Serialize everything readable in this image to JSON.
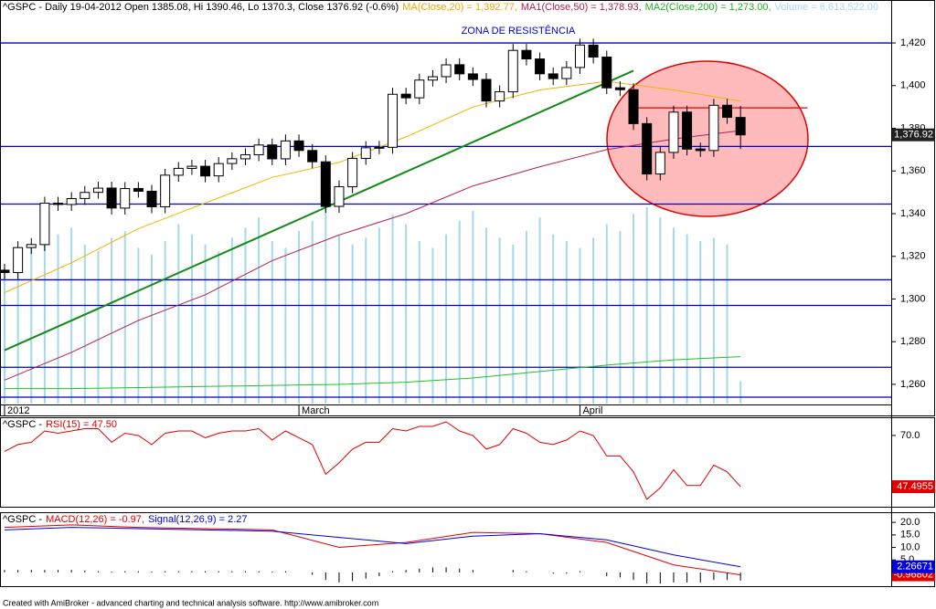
{
  "chart_data": [
    {
      "type": "candlestick",
      "header": [
        {
          "text": "^GSPC - Daily 19-04-2012 Open 1385.08, Hi 1390.46, Lo 1370.3, Close 1376.92 (-0.6%)",
          "color": "#000000"
        },
        {
          "text": "MA(Close,20) = 1,392.77,",
          "color": "#f0a800"
        },
        {
          "text": "MA1(Close,50) = 1,378.93,",
          "color": "#b0205a"
        },
        {
          "text": "MA2(Close,200) = 1,273.00,",
          "color": "#22b022"
        },
        {
          "text": "Volume = 6,613,522.00",
          "color": "#a6d8ec"
        }
      ],
      "annotation": "ZONA DE RESISTÊNCIA",
      "categories": [
        "2012",
        null,
        null,
        null,
        null,
        null,
        null,
        null,
        null,
        null,
        null,
        null,
        null,
        null,
        null,
        null,
        null,
        null,
        null,
        null,
        null,
        null,
        "March",
        null,
        null,
        null,
        null,
        null,
        null,
        null,
        null,
        null,
        null,
        null,
        null,
        null,
        null,
        null,
        null,
        null,
        null,
        null,
        null,
        "April",
        null,
        null,
        null,
        null,
        null,
        null,
        null,
        null,
        null,
        null,
        null,
        null
      ],
      "open": [
        1313.5,
        1312.4,
        1324.1,
        1325.5,
        1344.9,
        1344.3,
        1347.1,
        1350.0,
        1352.0,
        1342.6,
        1351.8,
        1350.5,
        1343.2,
        1358.0,
        1361.2,
        1362.2,
        1357.7,
        1363.5,
        1365.7,
        1367.6,
        1372.2,
        1365.7,
        1374.1,
        1369.6,
        1364.3,
        1343.4,
        1352.6,
        1365.9,
        1370.9,
        1371.1,
        1396.0,
        1394.3,
        1402.6,
        1404.2,
        1409.8,
        1405.5,
        1402.9,
        1392.8,
        1397.1,
        1416.5,
        1412.5,
        1405.5,
        1403.3,
        1408.5,
        1419.0,
        1413.4,
        1399.0,
        1398.1,
        1382.2,
        1358.6,
        1368.7,
        1387.6,
        1370.3,
        1369.6,
        1390.8,
        1385.08
      ],
      "high": [
        1316.5,
        1327.1,
        1328.5,
        1347.9,
        1347.9,
        1350.1,
        1353.0,
        1355.0,
        1355.0,
        1354.8,
        1354.8,
        1353.5,
        1361.0,
        1364.2,
        1365.2,
        1365.2,
        1366.5,
        1368.7,
        1370.6,
        1375.2,
        1375.2,
        1377.1,
        1377.1,
        1372.6,
        1367.3,
        1355.6,
        1368.9,
        1373.9,
        1374.1,
        1399.0,
        1399.0,
        1405.6,
        1407.2,
        1412.8,
        1412.8,
        1408.5,
        1405.9,
        1400.1,
        1419.5,
        1419.5,
        1415.5,
        1408.5,
        1411.5,
        1422.0,
        1422.0,
        1416.4,
        1402.0,
        1401.1,
        1385.2,
        1371.7,
        1390.6,
        1390.6,
        1373.3,
        1393.8,
        1393.8,
        1390.46
      ],
      "low": [
        1309.4,
        1309.4,
        1321.1,
        1322.5,
        1341.3,
        1341.3,
        1344.1,
        1347.0,
        1339.6,
        1339.6,
        1347.5,
        1340.2,
        1340.2,
        1355.0,
        1358.2,
        1354.7,
        1354.7,
        1360.5,
        1362.7,
        1364.6,
        1362.7,
        1362.7,
        1366.6,
        1361.3,
        1340.4,
        1340.4,
        1349.6,
        1362.9,
        1367.9,
        1368.1,
        1391.3,
        1391.3,
        1399.6,
        1401.2,
        1402.5,
        1399.9,
        1389.8,
        1389.8,
        1394.1,
        1409.5,
        1402.5,
        1400.3,
        1400.3,
        1405.5,
        1410.4,
        1396.0,
        1395.1,
        1379.2,
        1355.6,
        1355.6,
        1365.7,
        1367.3,
        1366.6,
        1366.6,
        1382.1,
        1370.3
      ],
      "close": [
        1312.41,
        1324.09,
        1325.54,
        1344.9,
        1344.33,
        1347.05,
        1349.96,
        1351.95,
        1342.64,
        1351.77,
        1350.5,
        1343.23,
        1358.04,
        1361.23,
        1362.21,
        1357.66,
        1363.46,
        1365.74,
        1367.59,
        1372.18,
        1365.68,
        1374.09,
        1369.63,
        1364.33,
        1343.36,
        1352.63,
        1365.91,
        1370.87,
        1371.09,
        1395.95,
        1394.28,
        1402.6,
        1404.17,
        1409.75,
        1405.52,
        1402.89,
        1392.78,
        1397.11,
        1416.51,
        1412.52,
        1405.54,
        1403.28,
        1408.47,
        1419.04,
        1413.38,
        1398.96,
        1398.08,
        1382.2,
        1358.59,
        1368.71,
        1387.57,
        1370.26,
        1369.57,
        1390.78,
        1385.14,
        1376.92
      ],
      "close_label": "1,376.92",
      "volume": {
        "color": "#a6d8ec",
        "values": [
          40000000,
          44000000,
          46000000,
          48000000,
          50000000,
          52000000,
          47000000,
          45000000,
          49000000,
          51000000,
          46000000,
          44000000,
          48000000,
          53000000,
          50000000,
          47000000,
          45000000,
          49000000,
          52000000,
          55000000,
          48000000,
          46000000,
          51000000,
          54000000,
          58000000,
          50000000,
          47000000,
          49000000,
          52000000,
          56000000,
          53000000,
          48000000,
          46000000,
          50000000,
          54000000,
          57000000,
          52000000,
          49000000,
          47000000,
          51000000,
          55000000,
          50000000,
          48000000,
          46000000,
          49000000,
          53000000,
          51000000,
          56000000,
          58000000,
          55000000,
          52000000,
          50000000,
          48000000,
          49000000,
          47000000,
          6613522
        ]
      },
      "series": [
        {
          "color": "#f0b400",
          "x": [
            0,
            5,
            10,
            15,
            20,
            25,
            30,
            35,
            40,
            45,
            50,
            55
          ],
          "values": [
            1303,
            1317,
            1333,
            1345,
            1357,
            1364,
            1376,
            1390,
            1398,
            1402,
            1398,
            1392.77
          ]
        },
        {
          "color": "#b0205a",
          "x": [
            0,
            5,
            10,
            15,
            20,
            25,
            30,
            35,
            40,
            45,
            50,
            55
          ],
          "values": [
            1262,
            1275,
            1290,
            1302,
            1318,
            1330,
            1340,
            1353,
            1362,
            1370,
            1375,
            1378.93
          ]
        },
        {
          "color": "#22c022",
          "x": [
            0,
            5,
            10,
            15,
            20,
            25,
            30,
            35,
            40,
            45,
            50,
            55
          ],
          "values": [
            1258,
            1258,
            1258.5,
            1259,
            1259.5,
            1260,
            1261,
            1263,
            1266,
            1269,
            1271.5,
            1273
          ]
        },
        {
          "color": "#138a13",
          "x": [
            0,
            47
          ],
          "values": [
            1276,
            1407
          ],
          "width": 2
        },
        {
          "color": "#e00000",
          "x": [
            47,
            60
          ],
          "values": [
            1389.6,
            1389.6
          ],
          "width": 1.2
        }
      ],
      "hlines": {
        "color": "#0000c8",
        "values": [
          1420,
          1371.5,
          1344.5,
          1309,
          1297,
          1268,
          1254
        ]
      },
      "xlim": [
        -0.34,
        66.26
      ],
      "ylim": [
        1251,
        1432
      ],
      "yticks": [
        {
          "value": 1260,
          "label": "1,260"
        },
        {
          "value": 1280,
          "label": "1,280"
        },
        {
          "value": 1300,
          "label": "1,300"
        },
        {
          "value": 1320,
          "label": "1,320"
        },
        {
          "value": 1340,
          "label": "1,340"
        },
        {
          "value": 1360,
          "label": "1,360"
        },
        {
          "value": 1380,
          "label": "1,380"
        },
        {
          "value": 1400,
          "label": "1,400"
        },
        {
          "value": 1420,
          "label": "1,420"
        }
      ]
    },
    {
      "type": "line",
      "header": [
        {
          "text": "^GSPC -",
          "color": "#000000"
        },
        {
          "text": "RSI(15) = 47.50",
          "color": "#e00000"
        }
      ],
      "series": [
        {
          "color": "#e00000",
          "values": [
            63,
            66,
            67,
            72,
            71,
            72,
            73,
            73,
            67,
            71,
            70,
            66,
            71,
            72,
            72,
            69,
            71,
            72,
            72,
            73,
            68,
            72,
            69,
            66,
            53,
            58,
            64,
            67,
            67,
            73,
            72,
            74,
            74,
            76,
            72,
            70,
            64,
            66,
            73,
            71,
            67,
            66,
            68,
            72,
            70,
            61,
            61,
            54,
            42,
            47,
            55,
            48,
            48,
            57,
            54,
            47.4955
          ],
          "label_bg": "#e00000"
        }
      ],
      "xlim": [
        -0.34,
        66.26
      ],
      "ylim": [
        38.7,
        77.6
      ],
      "yticks": [
        {
          "value": 70,
          "label": "70.0"
        }
      ]
    },
    {
      "type": "line",
      "header": [
        {
          "text": "^GSPC -",
          "color": "#000000"
        },
        {
          "text": "MACD(12,26) = -0.97,",
          "color": "#e00000"
        },
        {
          "text": "Signal(12,26,9) = 2.27",
          "color": "#0000e0"
        }
      ],
      "series": [
        {
          "color": "#e00000",
          "x": [
            0,
            5,
            10,
            15,
            20,
            25,
            30,
            35,
            40,
            45,
            50,
            55
          ],
          "values": [
            18,
            19,
            18,
            17.5,
            17,
            10,
            12,
            16,
            15.5,
            12,
            3,
            -0.96802
          ],
          "label_bg": "#e00000"
        },
        {
          "color": "#0000e0",
          "x": [
            0,
            5,
            10,
            15,
            20,
            25,
            30,
            35,
            40,
            45,
            50,
            55
          ],
          "values": [
            17,
            18,
            17.5,
            17,
            16.5,
            14,
            11.5,
            14.5,
            15.5,
            13,
            7,
            2.26671
          ],
          "label_bg": "#0000e0"
        }
      ],
      "bars": {
        "color": "#000000",
        "values": [
          1,
          1,
          1,
          1,
          1,
          1,
          0.8,
          0.5,
          0.3,
          0.5,
          0.5,
          0.3,
          0.5,
          0.5,
          0.5,
          0.5,
          0.5,
          0.5,
          0.5,
          0.5,
          0.3,
          0.5,
          0,
          -1,
          -3,
          -4,
          -3.5,
          -2.5,
          -1.5,
          0.5,
          1,
          1.5,
          2,
          2,
          1.5,
          1,
          0,
          0,
          1,
          0.5,
          0,
          -0.5,
          -0.5,
          0.5,
          0,
          -1.5,
          -2,
          -3,
          -4.5,
          -4.5,
          -4,
          -4,
          -4,
          -3,
          -3,
          -3.24
        ]
      },
      "xlim": [
        -0.34,
        66.26
      ],
      "ylim": [
        -5.5,
        23.7
      ],
      "yticks": [
        {
          "value": 5,
          "label": "5.0"
        },
        {
          "value": 10,
          "label": "10.0"
        },
        {
          "value": 15,
          "label": "15.0"
        },
        {
          "value": 20,
          "label": "20.0"
        }
      ]
    }
  ],
  "footer": "Created with AmiBroker - advanced charting and technical analysis software. http://www.amibroker.com"
}
